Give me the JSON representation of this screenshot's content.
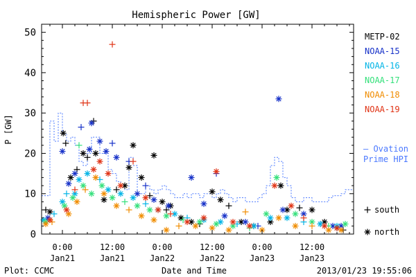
{
  "chart_data": {
    "type": "scatter",
    "title": "Hemispheric Power [GW]",
    "xlabel": "Date and Time",
    "ylabel": "P [GW]",
    "x_unit": "hours from 2013-01-21 00:00 UTC",
    "xlim": [
      -5,
      70
    ],
    "ylim": [
      0,
      52
    ],
    "x_ticks": [
      {
        "x": 0,
        "top": "0:00",
        "bottom": "Jan21"
      },
      {
        "x": 12,
        "top": "12:00",
        "bottom": "Jan21"
      },
      {
        "x": 24,
        "top": "0:00",
        "bottom": "Jan22"
      },
      {
        "x": 36,
        "top": "12:00",
        "bottom": "Jan22"
      },
      {
        "x": 48,
        "top": "0:00",
        "bottom": "Jan23"
      },
      {
        "x": 60,
        "top": "12:00",
        "bottom": "Jan23"
      }
    ],
    "y_ticks": [
      0,
      10,
      20,
      30,
      40,
      50
    ],
    "grid": false,
    "legend_position": "right",
    "series": [
      {
        "name": "METP-02",
        "color": "#000000",
        "points": [
          {
            "x": -4.0,
            "y": 6.0,
            "m": "+"
          },
          {
            "x": -3.0,
            "y": 5.5,
            "m": "*"
          },
          {
            "x": 0.2,
            "y": 25.0,
            "m": "*"
          },
          {
            "x": 0.8,
            "y": 22.5,
            "m": "+"
          },
          {
            "x": 2.0,
            "y": 14.0,
            "m": "*"
          },
          {
            "x": 3.5,
            "y": 16.0,
            "m": "+"
          },
          {
            "x": 5.0,
            "y": 20.0,
            "m": "*"
          },
          {
            "x": 6.0,
            "y": 19.0,
            "m": "+"
          },
          {
            "x": 7.5,
            "y": 28.0,
            "m": "+"
          },
          {
            "x": 8.0,
            "y": 20.0,
            "m": "*"
          },
          {
            "x": 10.0,
            "y": 8.5,
            "m": "*"
          },
          {
            "x": 13.0,
            "y": 11.0,
            "m": "+"
          },
          {
            "x": 15.0,
            "y": 12.0,
            "m": "*"
          },
          {
            "x": 16.0,
            "y": 16.5,
            "m": "*"
          },
          {
            "x": 17.0,
            "y": 22.0,
            "m": "*"
          },
          {
            "x": 19.0,
            "y": 14.0,
            "m": "*"
          },
          {
            "x": 21.0,
            "y": 9.5,
            "m": "+"
          },
          {
            "x": 22.0,
            "y": 19.5,
            "m": "*"
          },
          {
            "x": 24.0,
            "y": 8.0,
            "m": "*"
          },
          {
            "x": 25.0,
            "y": 6.0,
            "m": "+"
          },
          {
            "x": 26.0,
            "y": 7.0,
            "m": "*"
          },
          {
            "x": 28.5,
            "y": 4.0,
            "m": "*"
          },
          {
            "x": 31.0,
            "y": 3.0,
            "m": "*"
          },
          {
            "x": 33.0,
            "y": 2.5,
            "m": "+"
          },
          {
            "x": 36.0,
            "y": 10.5,
            "m": "*"
          },
          {
            "x": 38.0,
            "y": 8.5,
            "m": "*"
          },
          {
            "x": 40.0,
            "y": 7.0,
            "m": "+"
          },
          {
            "x": 43.0,
            "y": 3.0,
            "m": "*"
          },
          {
            "x": 46.0,
            "y": 2.0,
            "m": "*"
          },
          {
            "x": 50.0,
            "y": 3.0,
            "m": "*"
          },
          {
            "x": 52.5,
            "y": 12.0,
            "m": "*"
          },
          {
            "x": 54.0,
            "y": 6.0,
            "m": "*"
          },
          {
            "x": 57.0,
            "y": 6.5,
            "m": "+"
          },
          {
            "x": 60.0,
            "y": 6.0,
            "m": "*"
          },
          {
            "x": 63.0,
            "y": 3.0,
            "m": "*"
          },
          {
            "x": 66.0,
            "y": 1.5,
            "m": "*"
          },
          {
            "x": 67.5,
            "y": 1.0,
            "m": "+"
          }
        ]
      },
      {
        "name": "NOAA-15",
        "color": "#1530c8",
        "points": [
          {
            "x": -3.5,
            "y": 4.0,
            "m": "*"
          },
          {
            "x": 0.0,
            "y": 20.5,
            "m": "*"
          },
          {
            "x": 1.5,
            "y": 12.5,
            "m": "*"
          },
          {
            "x": 3.0,
            "y": 15.0,
            "m": "*"
          },
          {
            "x": 4.5,
            "y": 26.5,
            "m": "+"
          },
          {
            "x": 6.5,
            "y": 21.0,
            "m": "*"
          },
          {
            "x": 7.0,
            "y": 27.5,
            "m": "*"
          },
          {
            "x": 9.0,
            "y": 23.0,
            "m": "*"
          },
          {
            "x": 10.5,
            "y": 20.5,
            "m": "*"
          },
          {
            "x": 12.0,
            "y": 22.5,
            "m": "+"
          },
          {
            "x": 13.0,
            "y": 19.0,
            "m": "*"
          },
          {
            "x": 16.0,
            "y": 18.0,
            "m": "+"
          },
          {
            "x": 18.0,
            "y": 10.0,
            "m": "*"
          },
          {
            "x": 20.0,
            "y": 12.0,
            "m": "+"
          },
          {
            "x": 22.0,
            "y": 8.5,
            "m": "*"
          },
          {
            "x": 25.5,
            "y": 7.0,
            "m": "*"
          },
          {
            "x": 31.0,
            "y": 14.0,
            "m": "*"
          },
          {
            "x": 34.0,
            "y": 7.5,
            "m": "*"
          },
          {
            "x": 37.0,
            "y": 15.0,
            "m": "+"
          },
          {
            "x": 39.0,
            "y": 4.5,
            "m": "*"
          },
          {
            "x": 44.0,
            "y": 3.0,
            "m": "*"
          },
          {
            "x": 47.0,
            "y": 2.0,
            "m": "+"
          },
          {
            "x": 52.0,
            "y": 33.5,
            "m": "*"
          },
          {
            "x": 53.0,
            "y": 6.0,
            "m": "*"
          },
          {
            "x": 58.0,
            "y": 5.0,
            "m": "*"
          },
          {
            "x": 62.0,
            "y": 2.5,
            "m": "+"
          },
          {
            "x": 65.0,
            "y": 2.0,
            "m": "*"
          },
          {
            "x": 67.0,
            "y": 2.0,
            "m": "*"
          }
        ]
      },
      {
        "name": "NOAA-16",
        "color": "#00b4e6",
        "points": [
          {
            "x": -4.5,
            "y": 3.5,
            "m": "*"
          },
          {
            "x": -2.0,
            "y": 5.0,
            "m": "+"
          },
          {
            "x": 0.0,
            "y": 8.0,
            "m": "*"
          },
          {
            "x": 1.0,
            "y": 10.0,
            "m": "+"
          },
          {
            "x": 3.0,
            "y": 10.0,
            "m": "*"
          },
          {
            "x": 4.0,
            "y": 13.5,
            "m": "*"
          },
          {
            "x": 6.0,
            "y": 15.0,
            "m": "*"
          },
          {
            "x": 9.0,
            "y": 13.5,
            "m": "+"
          },
          {
            "x": 11.0,
            "y": 11.0,
            "m": "*"
          },
          {
            "x": 14.0,
            "y": 10.0,
            "m": "*"
          },
          {
            "x": 17.0,
            "y": 9.0,
            "m": "*"
          },
          {
            "x": 20.0,
            "y": 7.5,
            "m": "+"
          },
          {
            "x": 23.0,
            "y": 6.0,
            "m": "*"
          },
          {
            "x": 27.0,
            "y": 5.0,
            "m": "*"
          },
          {
            "x": 30.0,
            "y": 4.0,
            "m": "+"
          },
          {
            "x": 34.0,
            "y": 3.5,
            "m": "*"
          },
          {
            "x": 38.0,
            "y": 3.0,
            "m": "*"
          },
          {
            "x": 42.0,
            "y": 2.5,
            "m": "+"
          },
          {
            "x": 46.0,
            "y": 2.0,
            "m": "*"
          },
          {
            "x": 50.0,
            "y": 4.0,
            "m": "*"
          },
          {
            "x": 54.0,
            "y": 4.0,
            "m": "*"
          },
          {
            "x": 58.0,
            "y": 3.0,
            "m": "+"
          },
          {
            "x": 62.0,
            "y": 2.5,
            "m": "*"
          },
          {
            "x": 66.0,
            "y": 2.0,
            "m": "*"
          }
        ]
      },
      {
        "name": "NOAA-17",
        "color": "#33e07a",
        "points": [
          {
            "x": -4.0,
            "y": 3.0,
            "m": "*"
          },
          {
            "x": 0.5,
            "y": 7.0,
            "m": "*"
          },
          {
            "x": 2.5,
            "y": 9.0,
            "m": "*"
          },
          {
            "x": 4.0,
            "y": 22.0,
            "m": "+"
          },
          {
            "x": 5.0,
            "y": 12.0,
            "m": "*"
          },
          {
            "x": 7.0,
            "y": 10.0,
            "m": "*"
          },
          {
            "x": 9.5,
            "y": 12.0,
            "m": "*"
          },
          {
            "x": 12.0,
            "y": 9.0,
            "m": "*"
          },
          {
            "x": 15.0,
            "y": 8.0,
            "m": "+"
          },
          {
            "x": 18.0,
            "y": 7.0,
            "m": "*"
          },
          {
            "x": 21.0,
            "y": 6.0,
            "m": "*"
          },
          {
            "x": 25.0,
            "y": 4.5,
            "m": "*"
          },
          {
            "x": 29.0,
            "y": 3.5,
            "m": "+"
          },
          {
            "x": 33.0,
            "y": 3.0,
            "m": "*"
          },
          {
            "x": 37.0,
            "y": 2.5,
            "m": "*"
          },
          {
            "x": 41.0,
            "y": 2.0,
            "m": "*"
          },
          {
            "x": 45.0,
            "y": 1.5,
            "m": "+"
          },
          {
            "x": 49.0,
            "y": 5.0,
            "m": "*"
          },
          {
            "x": 51.5,
            "y": 14.0,
            "m": "*"
          },
          {
            "x": 56.0,
            "y": 5.0,
            "m": "*"
          },
          {
            "x": 60.0,
            "y": 3.0,
            "m": "*"
          },
          {
            "x": 64.0,
            "y": 2.0,
            "m": "+"
          },
          {
            "x": 68.0,
            "y": 2.5,
            "m": "*"
          }
        ]
      },
      {
        "name": "NOAA-18",
        "color": "#f08c00",
        "points": [
          {
            "x": -4.0,
            "y": 2.5,
            "m": "*"
          },
          {
            "x": -2.5,
            "y": 3.0,
            "m": "+"
          },
          {
            "x": 1.5,
            "y": 5.0,
            "m": "*"
          },
          {
            "x": 3.5,
            "y": 8.0,
            "m": "*"
          },
          {
            "x": 5.5,
            "y": 11.0,
            "m": "+"
          },
          {
            "x": 8.0,
            "y": 14.0,
            "m": "*"
          },
          {
            "x": 10.0,
            "y": 10.0,
            "m": "*"
          },
          {
            "x": 13.0,
            "y": 7.0,
            "m": "*"
          },
          {
            "x": 16.0,
            "y": 6.0,
            "m": "+"
          },
          {
            "x": 19.0,
            "y": 4.5,
            "m": "*"
          },
          {
            "x": 22.0,
            "y": 3.5,
            "m": "*"
          },
          {
            "x": 25.0,
            "y": 1.0,
            "m": "*"
          },
          {
            "x": 28.0,
            "y": 2.0,
            "m": "+"
          },
          {
            "x": 32.0,
            "y": 2.0,
            "m": "*"
          },
          {
            "x": 36.0,
            "y": 1.5,
            "m": "*"
          },
          {
            "x": 40.0,
            "y": 1.0,
            "m": "*"
          },
          {
            "x": 44.0,
            "y": 5.5,
            "m": "+"
          },
          {
            "x": 48.0,
            "y": 1.0,
            "m": "*"
          },
          {
            "x": 52.0,
            "y": 4.0,
            "m": "*"
          },
          {
            "x": 56.0,
            "y": 2.0,
            "m": "*"
          },
          {
            "x": 60.0,
            "y": 2.0,
            "m": "+"
          },
          {
            "x": 64.0,
            "y": 1.0,
            "m": "*"
          },
          {
            "x": 67.0,
            "y": 1.0,
            "m": "*"
          }
        ]
      },
      {
        "name": "NOAA-19",
        "color": "#e03214",
        "points": [
          {
            "x": -3.0,
            "y": 3.5,
            "m": "*"
          },
          {
            "x": 1.0,
            "y": 6.0,
            "m": "*"
          },
          {
            "x": 3.0,
            "y": 11.0,
            "m": "+"
          },
          {
            "x": 5.0,
            "y": 32.5,
            "m": "+"
          },
          {
            "x": 6.0,
            "y": 32.5,
            "m": "+"
          },
          {
            "x": 7.5,
            "y": 16.0,
            "m": "*"
          },
          {
            "x": 9.0,
            "y": 18.0,
            "m": "*"
          },
          {
            "x": 11.0,
            "y": 15.0,
            "m": "*"
          },
          {
            "x": 12.0,
            "y": 47.0,
            "m": "+"
          },
          {
            "x": 14.0,
            "y": 12.0,
            "m": "*"
          },
          {
            "x": 17.0,
            "y": 18.0,
            "m": "+"
          },
          {
            "x": 20.0,
            "y": 9.0,
            "m": "*"
          },
          {
            "x": 23.0,
            "y": 6.0,
            "m": "*"
          },
          {
            "x": 26.0,
            "y": 5.0,
            "m": "+"
          },
          {
            "x": 30.0,
            "y": 3.0,
            "m": "*"
          },
          {
            "x": 34.0,
            "y": 4.0,
            "m": "*"
          },
          {
            "x": 37.0,
            "y": 15.5,
            "m": "*"
          },
          {
            "x": 41.0,
            "y": 3.0,
            "m": "*"
          },
          {
            "x": 45.0,
            "y": 2.0,
            "m": "*"
          },
          {
            "x": 51.0,
            "y": 12.0,
            "m": "*"
          },
          {
            "x": 55.0,
            "y": 7.0,
            "m": "*"
          },
          {
            "x": 58.0,
            "y": 4.0,
            "m": "+"
          },
          {
            "x": 63.0,
            "y": 2.0,
            "m": "*"
          },
          {
            "x": 66.0,
            "y": 1.5,
            "m": "*"
          }
        ]
      }
    ],
    "ovation": {
      "name": "— Ovation Prime HPI",
      "color": "#4a78ff",
      "steps": [
        [
          -5,
          9.5
        ],
        [
          -3,
          28
        ],
        [
          -2,
          23
        ],
        [
          -1,
          30
        ],
        [
          0,
          25
        ],
        [
          1,
          23
        ],
        [
          2,
          24
        ],
        [
          3,
          22
        ],
        [
          4,
          18
        ],
        [
          5,
          17
        ],
        [
          6,
          20
        ],
        [
          7,
          24
        ],
        [
          9,
          20
        ],
        [
          11,
          16
        ],
        [
          12,
          15
        ],
        [
          13,
          13
        ],
        [
          14,
          12
        ],
        [
          15,
          11
        ],
        [
          16,
          19
        ],
        [
          17,
          17
        ],
        [
          18,
          10
        ],
        [
          20,
          12
        ],
        [
          21,
          11
        ],
        [
          22,
          10
        ],
        [
          23,
          11
        ],
        [
          24,
          12
        ],
        [
          25,
          11
        ],
        [
          26,
          10
        ],
        [
          27,
          9
        ],
        [
          29,
          10
        ],
        [
          30,
          9
        ],
        [
          31,
          10
        ],
        [
          33,
          9
        ],
        [
          34,
          10
        ],
        [
          36,
          9
        ],
        [
          37,
          10
        ],
        [
          38,
          11
        ],
        [
          39,
          10
        ],
        [
          40,
          9
        ],
        [
          41,
          8
        ],
        [
          42,
          9
        ],
        [
          44,
          8
        ],
        [
          47,
          9
        ],
        [
          48,
          10
        ],
        [
          49,
          12
        ],
        [
          50,
          17
        ],
        [
          51,
          19
        ],
        [
          52,
          18
        ],
        [
          53,
          14
        ],
        [
          54,
          12
        ],
        [
          55,
          9
        ],
        [
          56,
          8
        ],
        [
          58,
          9
        ],
        [
          60,
          8
        ],
        [
          64,
          9
        ],
        [
          65,
          9.5
        ],
        [
          67,
          10
        ],
        [
          68,
          11
        ],
        [
          70,
          11
        ]
      ]
    },
    "marker_legend": [
      {
        "symbol": "+",
        "label": "south"
      },
      {
        "symbol": "*",
        "label": "north"
      }
    ]
  },
  "footer": {
    "left": "Plot: CCMC",
    "right": "2013/01/23 19:55:06"
  }
}
